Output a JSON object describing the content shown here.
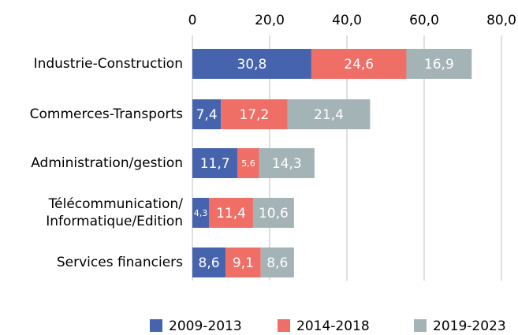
{
  "chart_data": {
    "type": "stacked_bar_horizontal",
    "categories": [
      "Industrie-Construction",
      "Commerces-Transports",
      "Administration/gestion",
      "Télécommunication/\nInformatique/Edition",
      "Services financiers"
    ],
    "series": [
      {
        "name": "2009-2013",
        "color": "#4664ae",
        "values": [
          30.8,
          7.4,
          11.7,
          4.3,
          8.6
        ],
        "value_labels": [
          "30,8",
          "7,4",
          "11,7",
          "4,3",
          "8,6"
        ]
      },
      {
        "name": "2014-2018",
        "color": "#ef6e66",
        "values": [
          24.6,
          17.2,
          5.6,
          11.4,
          9.1
        ],
        "value_labels": [
          "24,6",
          "17,2",
          "5,6",
          "11,4",
          "9,1"
        ]
      },
      {
        "name": "2019-2023",
        "color": "#a4b3b6",
        "values": [
          16.9,
          21.4,
          14.3,
          10.6,
          8.6
        ],
        "value_labels": [
          "16,9",
          "21,4",
          "14,3",
          "10,6",
          "8,6"
        ]
      }
    ],
    "xlim": [
      0,
      80
    ],
    "xticks": [
      0,
      {
        "value": 20,
        "label": "20,0"
      },
      {
        "value": 40,
        "label": "40,0"
      },
      {
        "value": 60,
        "label": "60,0"
      },
      {
        "value": 80,
        "label": "80,0"
      }
    ],
    "grid": true,
    "legend": "bottom"
  }
}
